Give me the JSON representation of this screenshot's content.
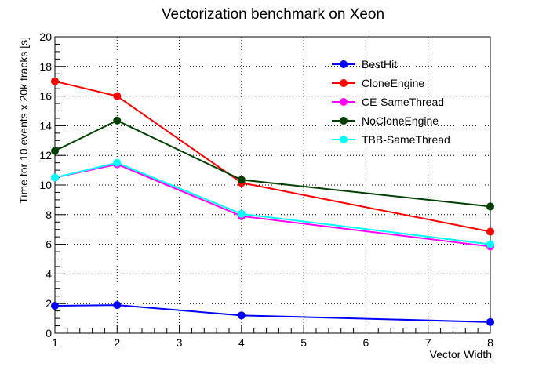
{
  "chart_data": {
    "type": "line",
    "title": "Vectorization benchmark on Xeon",
    "xlabel": "Vector Width",
    "ylabel": "Time for 10 events x 20k tracks [s]",
    "x": [
      1,
      2,
      4,
      8
    ],
    "xlim": [
      1,
      8
    ],
    "ylim": [
      0,
      20
    ],
    "xticks": [
      1,
      2,
      3,
      4,
      5,
      6,
      7,
      8
    ],
    "yticks": [
      0,
      2,
      4,
      6,
      8,
      10,
      12,
      14,
      16,
      18,
      20
    ],
    "grid": true,
    "legend_position": "top-right",
    "series": [
      {
        "name": "BestHit",
        "color": "#0000ff",
        "values": [
          1.85,
          1.9,
          1.2,
          0.75
        ]
      },
      {
        "name": "CloneEngine",
        "color": "#ff0000",
        "values": [
          17.0,
          16.0,
          10.15,
          6.85
        ]
      },
      {
        "name": "CE-SameThread",
        "color": "#ff00ff",
        "values": [
          10.5,
          11.4,
          7.9,
          5.85
        ]
      },
      {
        "name": "NoCloneEngine",
        "color": "#004000",
        "values": [
          12.3,
          14.35,
          10.35,
          8.55
        ]
      },
      {
        "name": "TBB-SameThread",
        "color": "#00ffff",
        "values": [
          10.5,
          11.5,
          8.05,
          6.0
        ]
      }
    ]
  }
}
